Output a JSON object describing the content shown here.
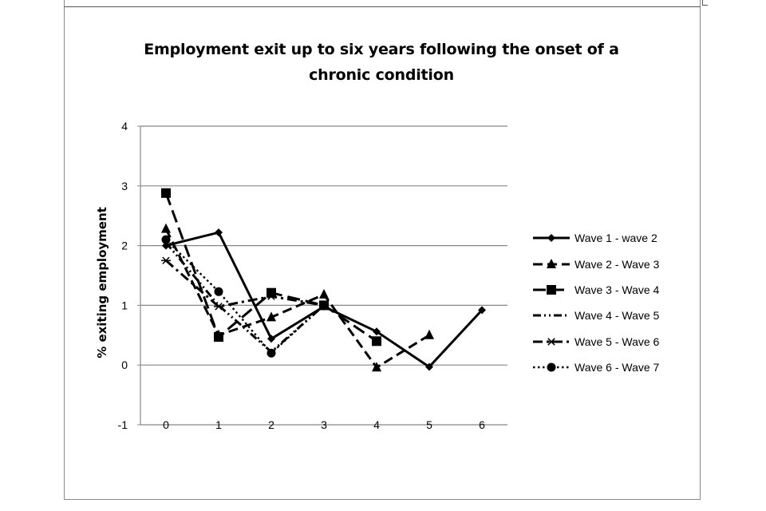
{
  "chart_data": {
    "type": "line",
    "title": "Employment exit up to six years following the onset of a chronic condition",
    "xlabel": "",
    "ylabel": "% exiting employment",
    "x": [
      0,
      1,
      2,
      3,
      4,
      5,
      6
    ],
    "x_tick_labels": [
      "0",
      "1",
      "2",
      "3",
      "4",
      "5",
      "6"
    ],
    "y_ticks": [
      -1,
      0,
      1,
      2,
      3,
      4
    ],
    "y_tick_labels": [
      "-1",
      "0",
      "1",
      "2",
      "3",
      "4"
    ],
    "ylim": [
      -1,
      4
    ],
    "grid": "horizontal",
    "legend_position": "right",
    "series": [
      {
        "name": "Wave 1 - wave 2",
        "marker": "diamond",
        "dash": "solid",
        "x": [
          0,
          1,
          2,
          3,
          4,
          5,
          6
        ],
        "values": [
          2.0,
          2.22,
          0.44,
          0.98,
          0.56,
          -0.03,
          0.92
        ]
      },
      {
        "name": "Wave 2 - Wave 3",
        "marker": "triangle",
        "dash": "dash",
        "x": [
          0,
          1,
          2,
          3,
          4,
          5
        ],
        "values": [
          2.28,
          0.5,
          0.8,
          1.18,
          -0.04,
          0.5
        ]
      },
      {
        "name": "Wave 3 - Wave 4",
        "marker": "square",
        "dash": "longdash",
        "x": [
          0,
          1,
          2,
          3,
          4
        ],
        "values": [
          2.88,
          0.47,
          1.21,
          1.0,
          0.4
        ]
      },
      {
        "name": "Wave 4 - Wave 5",
        "marker": "none",
        "dash": "dashdotdot",
        "x": [
          0,
          1,
          2,
          3
        ],
        "values": [
          2.05,
          1.0,
          0.22,
          1.0
        ]
      },
      {
        "name": "Wave 5 - Wave 6",
        "marker": "asterisk",
        "dash": "dashdot",
        "x": [
          0,
          1,
          2,
          3
        ],
        "values": [
          1.75,
          0.98,
          1.15,
          1.0
        ]
      },
      {
        "name": "Wave 6 - Wave 7",
        "marker": "circle",
        "dash": "dot",
        "x": [
          0,
          1,
          2,
          3
        ],
        "values": [
          2.1,
          1.23,
          0.2,
          1.0
        ]
      }
    ]
  }
}
